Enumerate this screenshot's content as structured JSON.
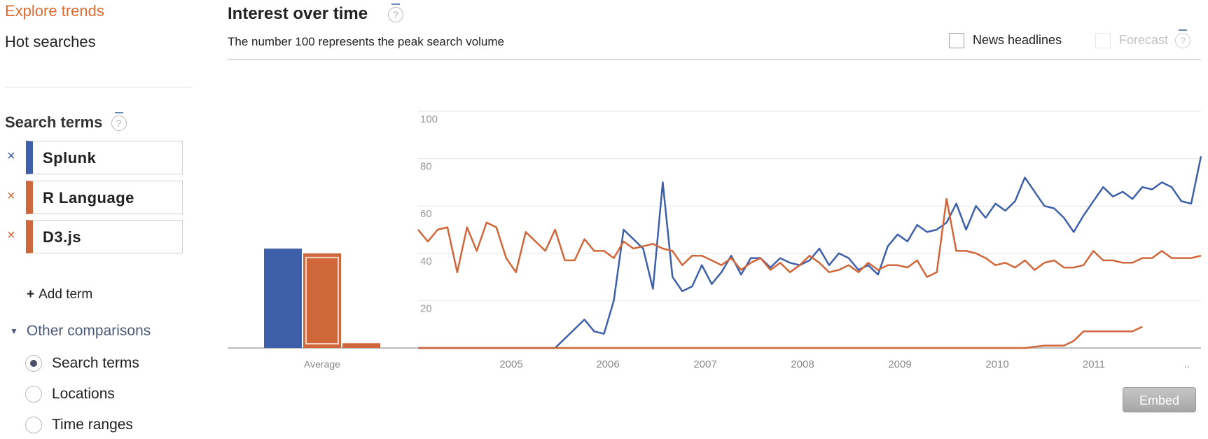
{
  "nav": {
    "explore_trends": "Explore trends",
    "hot_searches": "Hot searches"
  },
  "sidebar": {
    "search_terms_heading": "Search terms",
    "terms": [
      {
        "label": "Splunk",
        "color": "#3e5fa9",
        "remove_icon": "close-icon"
      },
      {
        "label": "R Language",
        "color": "#d0673a",
        "remove_icon": "close-icon"
      },
      {
        "label": "D3.js",
        "color": "#d0673a",
        "remove_icon": "close-icon"
      }
    ],
    "add_term": "Add term",
    "other_comparisons": "Other comparisons",
    "comparison_options": [
      {
        "label": "Search terms",
        "selected": true
      },
      {
        "label": "Locations",
        "selected": false
      },
      {
        "label": "Time ranges",
        "selected": false
      }
    ]
  },
  "main": {
    "title": "Interest over time",
    "subtitle": "The number 100 represents the peak search volume",
    "news_headlines": "News headlines",
    "forecast": "Forecast",
    "embed": "Embed"
  },
  "colors": {
    "accent": "#dd6b30",
    "splunk": "#3e5fa9",
    "r_language": "#d0673a",
    "d3js": "#d0673a"
  },
  "chart_data": {
    "type": "line",
    "y_ticks": [
      "100",
      "80",
      "60",
      "40",
      "20"
    ],
    "ylim": [
      0,
      100
    ],
    "x_tick_labels": [
      "2005",
      "2006",
      "2007",
      "2008",
      "2009",
      "2010",
      "2011",
      ".."
    ],
    "average": {
      "label": "Average",
      "values": [
        {
          "name": "Splunk",
          "value": 42
        },
        {
          "name": "R Language",
          "value": 40
        },
        {
          "name": "D3.js",
          "value": 2
        }
      ]
    },
    "x_range": [
      2004.0,
      2012.0
    ],
    "series": [
      {
        "name": "Splunk",
        "color": "#3e5fa9",
        "points": [
          [
            2004.0,
            0
          ],
          [
            2005.4,
            0
          ],
          [
            2005.7,
            12
          ],
          [
            2005.8,
            7
          ],
          [
            2005.9,
            6
          ],
          [
            2006.0,
            20
          ],
          [
            2006.1,
            50
          ],
          [
            2006.3,
            42
          ],
          [
            2006.4,
            25
          ],
          [
            2006.5,
            70
          ],
          [
            2006.6,
            30
          ],
          [
            2006.7,
            24
          ],
          [
            2006.8,
            26
          ],
          [
            2006.9,
            35
          ],
          [
            2007.0,
            27
          ],
          [
            2007.1,
            32
          ],
          [
            2007.2,
            39
          ],
          [
            2007.3,
            31
          ],
          [
            2007.4,
            38
          ],
          [
            2007.5,
            38
          ],
          [
            2007.6,
            34
          ],
          [
            2007.7,
            38
          ],
          [
            2007.8,
            36
          ],
          [
            2007.9,
            35
          ],
          [
            2008.0,
            37
          ],
          [
            2008.1,
            42
          ],
          [
            2008.2,
            35
          ],
          [
            2008.3,
            40
          ],
          [
            2008.4,
            38
          ],
          [
            2008.5,
            33
          ],
          [
            2008.6,
            35
          ],
          [
            2008.7,
            31
          ],
          [
            2008.8,
            43
          ],
          [
            2008.9,
            48
          ],
          [
            2009.0,
            45
          ],
          [
            2009.1,
            52
          ],
          [
            2009.2,
            49
          ],
          [
            2009.3,
            50
          ],
          [
            2009.4,
            53
          ],
          [
            2009.5,
            61
          ],
          [
            2009.6,
            50
          ],
          [
            2009.7,
            60
          ],
          [
            2009.8,
            55
          ],
          [
            2009.9,
            61
          ],
          [
            2010.0,
            58
          ],
          [
            2010.1,
            62
          ],
          [
            2010.2,
            72
          ],
          [
            2010.4,
            60
          ],
          [
            2010.5,
            59
          ],
          [
            2010.6,
            55
          ],
          [
            2010.7,
            49
          ],
          [
            2010.8,
            56
          ],
          [
            2010.9,
            62
          ],
          [
            2011.0,
            68
          ],
          [
            2011.1,
            64
          ],
          [
            2011.2,
            66
          ],
          [
            2011.3,
            63
          ],
          [
            2011.4,
            68
          ],
          [
            2011.5,
            67
          ],
          [
            2011.6,
            70
          ],
          [
            2011.7,
            68
          ],
          [
            2011.8,
            62
          ],
          [
            2011.9,
            61
          ],
          [
            2012.0,
            81
          ]
        ]
      },
      {
        "name": "R Language",
        "color": "#d0673a",
        "points": [
          [
            2004.0,
            50
          ],
          [
            2004.1,
            45
          ],
          [
            2004.2,
            50
          ],
          [
            2004.3,
            51
          ],
          [
            2004.4,
            32
          ],
          [
            2004.5,
            51
          ],
          [
            2004.6,
            41
          ],
          [
            2004.7,
            53
          ],
          [
            2004.8,
            51
          ],
          [
            2004.9,
            38
          ],
          [
            2005.0,
            32
          ],
          [
            2005.1,
            49
          ],
          [
            2005.2,
            45
          ],
          [
            2005.3,
            41
          ],
          [
            2005.4,
            50
          ],
          [
            2005.5,
            37
          ],
          [
            2005.6,
            37
          ],
          [
            2005.7,
            46
          ],
          [
            2005.8,
            41
          ],
          [
            2005.9,
            41
          ],
          [
            2006.0,
            38
          ],
          [
            2006.1,
            45
          ],
          [
            2006.2,
            42
          ],
          [
            2006.3,
            43
          ],
          [
            2006.4,
            44
          ],
          [
            2006.5,
            42
          ],
          [
            2006.6,
            41
          ],
          [
            2006.7,
            35
          ],
          [
            2006.8,
            39
          ],
          [
            2006.9,
            39
          ],
          [
            2007.0,
            37
          ],
          [
            2007.1,
            35
          ],
          [
            2007.2,
            38
          ],
          [
            2007.3,
            33
          ],
          [
            2007.4,
            36
          ],
          [
            2007.5,
            38
          ],
          [
            2007.6,
            33
          ],
          [
            2007.7,
            36
          ],
          [
            2007.8,
            32
          ],
          [
            2007.9,
            35
          ],
          [
            2008.0,
            39
          ],
          [
            2008.1,
            36
          ],
          [
            2008.2,
            32
          ],
          [
            2008.3,
            33
          ],
          [
            2008.4,
            35
          ],
          [
            2008.5,
            32
          ],
          [
            2008.6,
            36
          ],
          [
            2008.7,
            33
          ],
          [
            2008.8,
            35
          ],
          [
            2008.9,
            35
          ],
          [
            2009.0,
            34
          ],
          [
            2009.1,
            37
          ],
          [
            2009.2,
            30
          ],
          [
            2009.3,
            32
          ],
          [
            2009.4,
            63
          ],
          [
            2009.5,
            41
          ],
          [
            2009.6,
            41
          ],
          [
            2009.7,
            40
          ],
          [
            2009.8,
            38
          ],
          [
            2009.9,
            35
          ],
          [
            2010.0,
            36
          ],
          [
            2010.1,
            34
          ],
          [
            2010.2,
            37
          ],
          [
            2010.3,
            33
          ],
          [
            2010.4,
            36
          ],
          [
            2010.5,
            37
          ],
          [
            2010.6,
            34
          ],
          [
            2010.7,
            34
          ],
          [
            2010.8,
            35
          ],
          [
            2010.9,
            41
          ],
          [
            2011.0,
            37
          ],
          [
            2011.1,
            37
          ],
          [
            2011.2,
            36
          ],
          [
            2011.3,
            36
          ],
          [
            2011.4,
            38
          ],
          [
            2011.5,
            38
          ],
          [
            2011.6,
            41
          ],
          [
            2011.7,
            38
          ],
          [
            2011.8,
            38
          ],
          [
            2011.9,
            38
          ],
          [
            2012.0,
            39
          ]
        ]
      },
      {
        "name": "D3.js",
        "color": "#d0673a",
        "points": [
          [
            2004.0,
            0
          ],
          [
            2010.2,
            0
          ],
          [
            2010.4,
            1
          ],
          [
            2010.6,
            1
          ],
          [
            2010.7,
            3
          ],
          [
            2010.8,
            7
          ],
          [
            2011.0,
            7
          ],
          [
            2011.2,
            7
          ],
          [
            2011.3,
            7
          ],
          [
            2011.4,
            9
          ]
        ]
      }
    ]
  }
}
